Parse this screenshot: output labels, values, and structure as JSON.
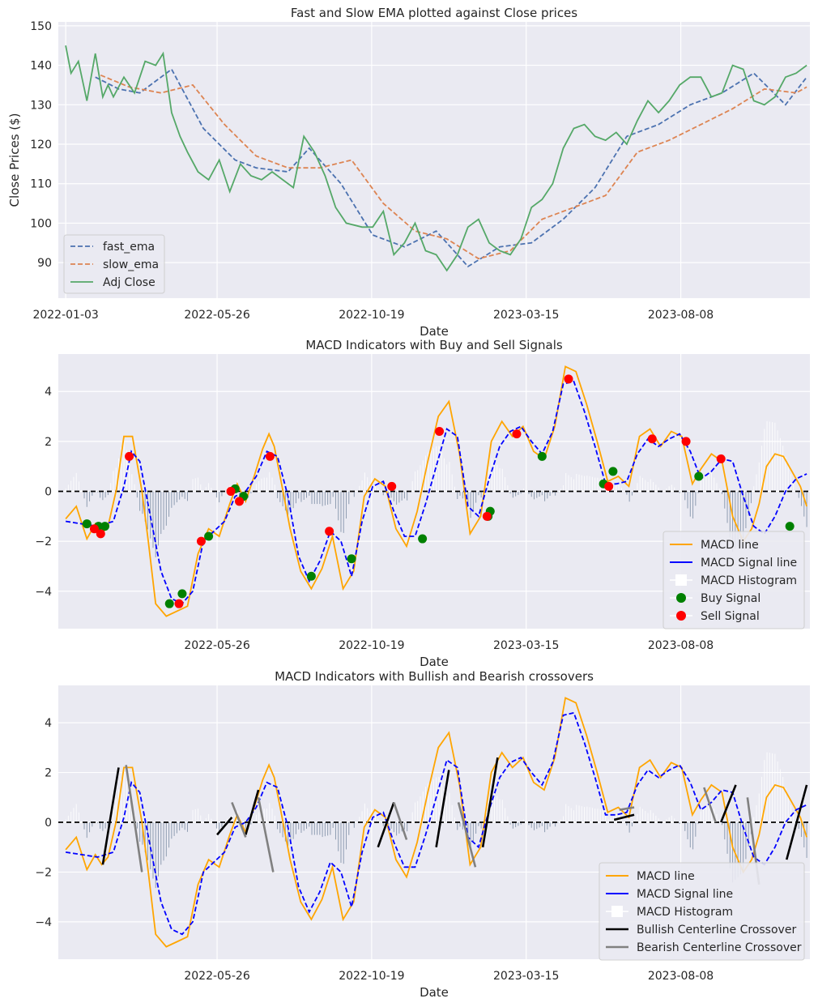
{
  "chart_data": [
    {
      "type": "line",
      "title": "Fast and Slow EMA plotted against Close prices",
      "xlabel": "Date",
      "ylabel": "Close Prices ($)",
      "x_ticks": [
        "2022-01-03",
        "2022-05-26",
        "2022-10-19",
        "2023-03-15",
        "2023-08-08"
      ],
      "y_ticks": [
        90,
        100,
        110,
        120,
        130,
        140,
        150
      ],
      "ylim": [
        81,
        151
      ],
      "xlim_days": [
        -7,
        703
      ],
      "legend_position": "lower-left",
      "series": [
        {
          "name": "fast_ema",
          "color": "#4c72b0",
          "style": "dashed",
          "days": [
            28,
            50,
            70,
            100,
            130,
            160,
            180,
            210,
            230,
            260,
            290,
            320,
            350,
            380,
            410,
            440,
            470,
            500,
            530,
            560,
            590,
            620,
            650,
            680,
            700
          ],
          "values": [
            137,
            134,
            133,
            139,
            124,
            116,
            114,
            113,
            119,
            110,
            97,
            94,
            98,
            89,
            94,
            95,
            101,
            109,
            122,
            125,
            130,
            133,
            138,
            130,
            137
          ]
        },
        {
          "name": "slow_ema",
          "color": "#dd8452",
          "style": "dashed",
          "days": [
            33,
            60,
            90,
            120,
            150,
            180,
            210,
            240,
            270,
            300,
            330,
            360,
            390,
            420,
            450,
            480,
            510,
            540,
            570,
            600,
            630,
            660,
            690,
            700
          ],
          "values": [
            137.5,
            134.5,
            133,
            135,
            125,
            117,
            114,
            114,
            116,
            105,
            98,
            96,
            91,
            93,
            101,
            104,
            107,
            118,
            121,
            125,
            129,
            134,
            133,
            134.5
          ]
        },
        {
          "name": "Adj Close",
          "color": "#55a868",
          "style": "solid",
          "days": [
            0,
            5,
            12,
            20,
            28,
            35,
            40,
            45,
            55,
            65,
            75,
            85,
            92,
            100,
            108,
            115,
            125,
            135,
            145,
            155,
            165,
            175,
            185,
            195,
            205,
            215,
            225,
            235,
            245,
            255,
            265,
            280,
            290,
            300,
            310,
            320,
            330,
            340,
            350,
            360,
            370,
            380,
            390,
            400,
            410,
            420,
            430,
            440,
            450,
            460,
            470,
            480,
            490,
            500,
            510,
            520,
            530,
            540,
            550,
            560,
            570,
            580,
            590,
            600,
            610,
            620,
            630,
            640,
            650,
            660,
            670,
            680,
            690,
            700
          ],
          "values": [
            145,
            138,
            141,
            131,
            143,
            132,
            135,
            132,
            137,
            133,
            141,
            140,
            143,
            128,
            122,
            118,
            113,
            111,
            116,
            108,
            115,
            112,
            111,
            113,
            111,
            109,
            122,
            118,
            112,
            104,
            100,
            99,
            99,
            103,
            92,
            95,
            100,
            93,
            92,
            88,
            92,
            99,
            101,
            95,
            93,
            92,
            96,
            104,
            106,
            110,
            119,
            124,
            125,
            122,
            121,
            123,
            120,
            126,
            131,
            128,
            131,
            135,
            137,
            137,
            132,
            133,
            140,
            139,
            131,
            130,
            132,
            137,
            138,
            140
          ]
        }
      ]
    },
    {
      "type": "line",
      "title": "MACD Indicators with Buy and Sell Signals",
      "xlabel": "Date",
      "x_ticks": [
        "2022-05-26",
        "2022-10-19",
        "2023-03-15",
        "2023-08-08"
      ],
      "y_ticks": [
        -4,
        -2,
        0,
        2,
        4
      ],
      "ylim": [
        -5.5,
        5.5
      ],
      "legend_position": "lower-right",
      "series": [
        {
          "name": "MACD line",
          "color": "#ffa500",
          "style": "solid",
          "days": [
            0,
            10,
            20,
            28,
            34,
            40,
            48,
            55,
            63,
            72,
            78,
            85,
            95,
            105,
            115,
            125,
            135,
            145,
            155,
            162,
            170,
            178,
            186,
            192,
            197,
            203,
            212,
            222,
            232,
            242,
            252,
            262,
            272,
            282,
            292,
            302,
            312,
            322,
            332,
            342,
            352,
            362,
            372,
            382,
            392,
            402,
            412,
            422,
            432,
            442,
            452,
            462,
            472,
            482,
            492,
            502,
            512,
            522,
            532,
            542,
            552,
            562,
            572,
            582,
            592,
            600,
            610,
            620,
            630,
            640,
            648,
            655,
            662,
            670,
            678,
            686,
            694,
            700
          ],
          "values": [
            -1.1,
            -0.6,
            -1.9,
            -1.3,
            -1.7,
            -1.4,
            0.1,
            2.2,
            2.2,
            0.0,
            -2.0,
            -4.5,
            -5.0,
            -4.8,
            -4.6,
            -2.5,
            -1.5,
            -1.8,
            -0.5,
            0.3,
            -0.4,
            0.6,
            1.7,
            2.3,
            1.8,
            0.5,
            -1.5,
            -3.2,
            -3.9,
            -3.1,
            -1.8,
            -3.9,
            -3.2,
            -0.2,
            0.5,
            0.2,
            -1.5,
            -2.2,
            -0.8,
            1.2,
            3.0,
            3.6,
            1.5,
            -1.7,
            -1.0,
            2.0,
            2.8,
            2.2,
            2.6,
            1.6,
            1.3,
            2.6,
            5.0,
            4.8,
            3.5,
            2.0,
            0.4,
            0.6,
            0.2,
            2.2,
            2.5,
            1.8,
            2.4,
            2.2,
            0.3,
            0.9,
            1.5,
            1.2,
            -1.0,
            -2.0,
            -1.5,
            -0.5,
            1.0,
            1.5,
            1.4,
            0.8,
            0.2,
            -0.6
          ]
        },
        {
          "name": "MACD Signal line",
          "color": "#0000ff",
          "style": "dashed",
          "days": [
            0,
            15,
            30,
            45,
            55,
            62,
            70,
            80,
            90,
            100,
            110,
            120,
            130,
            140,
            150,
            160,
            170,
            180,
            190,
            200,
            210,
            220,
            230,
            240,
            250,
            260,
            270,
            280,
            290,
            300,
            310,
            320,
            330,
            340,
            350,
            360,
            370,
            380,
            390,
            400,
            410,
            420,
            430,
            440,
            450,
            460,
            470,
            480,
            490,
            500,
            510,
            520,
            530,
            540,
            550,
            560,
            570,
            580,
            590,
            600,
            610,
            620,
            630,
            640,
            650,
            660,
            670,
            680,
            690,
            700
          ],
          "values": [
            -1.2,
            -1.3,
            -1.4,
            -1.2,
            0.2,
            1.6,
            1.2,
            -1.0,
            -3.2,
            -4.3,
            -4.5,
            -4.0,
            -2.0,
            -1.6,
            -1.2,
            -0.2,
            0.0,
            0.6,
            1.6,
            1.4,
            -0.2,
            -2.6,
            -3.6,
            -2.8,
            -1.6,
            -2.0,
            -3.4,
            -1.2,
            0.2,
            0.4,
            -0.8,
            -1.8,
            -1.8,
            -0.5,
            1.0,
            2.5,
            2.2,
            -0.6,
            -1.0,
            0.5,
            1.8,
            2.4,
            2.6,
            2.0,
            1.5,
            2.4,
            4.3,
            4.4,
            3.2,
            1.8,
            0.3,
            0.3,
            0.4,
            1.5,
            2.1,
            1.8,
            2.1,
            2.3,
            1.6,
            0.5,
            0.8,
            1.3,
            1.2,
            -0.2,
            -1.4,
            -1.7,
            -1.0,
            0.0,
            0.5,
            0.7
          ]
        },
        {
          "name": "MACD Histogram",
          "color": "#f0f0f8",
          "style": "bar"
        },
        {
          "name": "Buy Signal",
          "color": "#008000",
          "style": "marker",
          "days": [
            20,
            31,
            37,
            98,
            110,
            135,
            160,
            168,
            232,
            270,
            337,
            399,
            401,
            450,
            508,
            517,
            598,
            684
          ],
          "values": [
            -1.3,
            -1.4,
            -1.4,
            -4.5,
            -4.1,
            -1.8,
            0.1,
            -0.2,
            -3.4,
            -2.7,
            -1.9,
            -1.0,
            -0.8,
            1.4,
            0.3,
            0.8,
            0.6,
            -1.4
          ]
        },
        {
          "name": "Sell Signal",
          "color": "#ff0000",
          "style": "marker",
          "days": [
            27,
            33,
            60,
            107,
            128,
            156,
            164,
            193,
            249,
            308,
            353,
            398,
            426,
            475,
            513,
            554,
            586,
            619
          ],
          "values": [
            -1.5,
            -1.7,
            1.4,
            -4.5,
            -2.0,
            0.0,
            -0.4,
            1.4,
            -1.6,
            0.2,
            2.4,
            -1.0,
            2.3,
            4.5,
            0.2,
            2.1,
            2.0,
            1.3
          ]
        }
      ]
    },
    {
      "type": "line",
      "title": "MACD Indicators with Bullish and Bearish crossovers",
      "xlabel": "Date",
      "x_ticks": [
        "2022-05-26",
        "2022-10-19",
        "2023-03-15",
        "2023-08-08"
      ],
      "y_ticks": [
        -4,
        -2,
        0,
        2,
        4
      ],
      "ylim": [
        -5.5,
        5.5
      ],
      "legend_position": "lower-right",
      "series": [
        {
          "name": "MACD line",
          "color": "#ffa500",
          "style": "solid"
        },
        {
          "name": "MACD Signal line",
          "color": "#0000ff",
          "style": "dashed"
        },
        {
          "name": "MACD Histogram",
          "color": "#f0f0f8",
          "style": "bar"
        },
        {
          "name": "Bullish Centerline Crossover",
          "color": "#000000",
          "style": "solid",
          "segments": [
            [
              [
                35,
                -1.7
              ],
              [
                50,
                2.2
              ]
            ],
            [
              [
                143,
                -0.5
              ],
              [
                157,
                0.2
              ]
            ],
            [
              [
                170,
                -0.5
              ],
              [
                182,
                1.3
              ]
            ],
            [
              [
                295,
                -1.0
              ],
              [
                310,
                0.8
              ]
            ],
            [
              [
                350,
                -1.0
              ],
              [
                362,
                2.1
              ]
            ],
            [
              [
                394,
                -1.0
              ],
              [
                408,
                2.6
              ]
            ],
            [
              [
                518,
                0.1
              ],
              [
                537,
                0.3
              ]
            ],
            [
              [
                619,
                0.0
              ],
              [
                633,
                1.5
              ]
            ],
            [
              [
                681,
                -1.5
              ],
              [
                700,
                1.5
              ]
            ]
          ]
        },
        {
          "name": "Bearish Centerline Crossover",
          "color": "#808080",
          "style": "solid",
          "segments": [
            [
              [
                57,
                2.3
              ],
              [
                72,
                -2.0
              ]
            ],
            [
              [
                157,
                0.8
              ],
              [
                170,
                -0.6
              ]
            ],
            [
              [
                182,
                1.0
              ],
              [
                196,
                -2.0
              ]
            ],
            [
              [
                310,
                0.8
              ],
              [
                322,
                -0.7
              ]
            ],
            [
              [
                371,
                0.8
              ],
              [
                387,
                -1.8
              ]
            ],
            [
              [
                523,
                0.5
              ],
              [
                537,
                0.6
              ]
            ],
            [
              [
                603,
                1.4
              ],
              [
                614,
                0.0
              ]
            ],
            [
              [
                644,
                1.0
              ],
              [
                655,
                -2.5
              ]
            ]
          ]
        }
      ]
    }
  ]
}
